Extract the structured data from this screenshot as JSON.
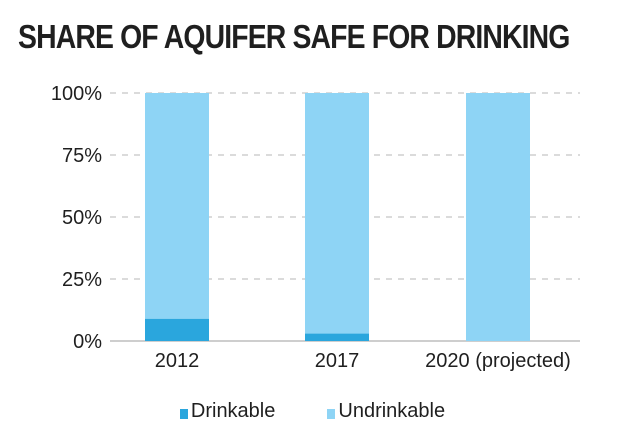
{
  "chart_data": {
    "type": "bar",
    "stacked": true,
    "title": "SHARE OF AQUIFER SAFE FOR DRINKING",
    "categories": [
      "2012",
      "2017",
      "2020 (projected)"
    ],
    "series": [
      {
        "name": "Drinkable",
        "color": "#2aa6dd",
        "values": [
          9,
          3,
          0
        ]
      },
      {
        "name": "Undrinkable",
        "color": "#8ed4f5",
        "values": [
          91,
          97,
          100
        ]
      }
    ],
    "yticks": [
      "0%",
      "25%",
      "50%",
      "75%",
      "100%"
    ],
    "ylim": [
      0,
      100
    ],
    "grid": true,
    "legend_position": "bottom"
  }
}
